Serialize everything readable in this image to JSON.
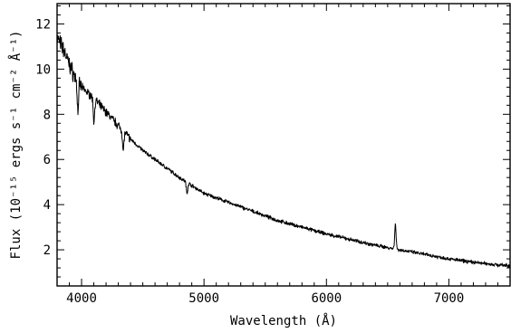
{
  "chart_data": {
    "type": "line",
    "title": "",
    "xlabel": "Wavelength (Å)",
    "ylabel": "Flux (10⁻¹⁵ ergs s⁻¹ cm⁻² Å⁻¹)",
    "xlim": [
      3800,
      7500
    ],
    "ylim": [
      0.4,
      12.9
    ],
    "x_major_ticks": [
      4000,
      5000,
      6000,
      7000
    ],
    "x_tick_labels": [
      "4000",
      "5000",
      "6000",
      "7000"
    ],
    "x_minor_step": 100,
    "y_major_ticks": [
      2,
      4,
      6,
      8,
      10,
      12
    ],
    "y_tick_labels": [
      "2",
      "4",
      "6",
      "8",
      "10",
      "12"
    ],
    "y_minor_step": 0.4,
    "grid": false,
    "series": [
      {
        "continuum": [
          [
            3800,
            11.4
          ],
          [
            3850,
            10.9
          ],
          [
            3900,
            10.2
          ],
          [
            3950,
            9.6
          ],
          [
            4000,
            9.2
          ],
          [
            4100,
            8.7
          ],
          [
            4200,
            8.1
          ],
          [
            4300,
            7.5
          ],
          [
            4400,
            6.9
          ],
          [
            4500,
            6.4
          ],
          [
            4600,
            6.0
          ],
          [
            4700,
            5.6
          ],
          [
            4800,
            5.2
          ],
          [
            4900,
            4.85
          ],
          [
            5000,
            4.5
          ],
          [
            5200,
            4.1
          ],
          [
            5400,
            3.7
          ],
          [
            5600,
            3.3
          ],
          [
            5800,
            3.0
          ],
          [
            6000,
            2.7
          ],
          [
            6200,
            2.45
          ],
          [
            6400,
            2.2
          ],
          [
            6600,
            2.0
          ],
          [
            6800,
            1.8
          ],
          [
            7000,
            1.6
          ],
          [
            7200,
            1.45
          ],
          [
            7400,
            1.33
          ],
          [
            7500,
            1.3
          ]
        ],
        "features": [
          {
            "x": 3970,
            "depth": -1.3,
            "width": 8
          },
          {
            "x": 4101,
            "depth": -1.0,
            "width": 8
          },
          {
            "x": 4340,
            "depth": -0.9,
            "width": 8
          },
          {
            "x": 4861,
            "depth": -0.5,
            "width": 8
          },
          {
            "x": 6563,
            "depth": 1.1,
            "width": 8
          }
        ]
      }
    ]
  }
}
